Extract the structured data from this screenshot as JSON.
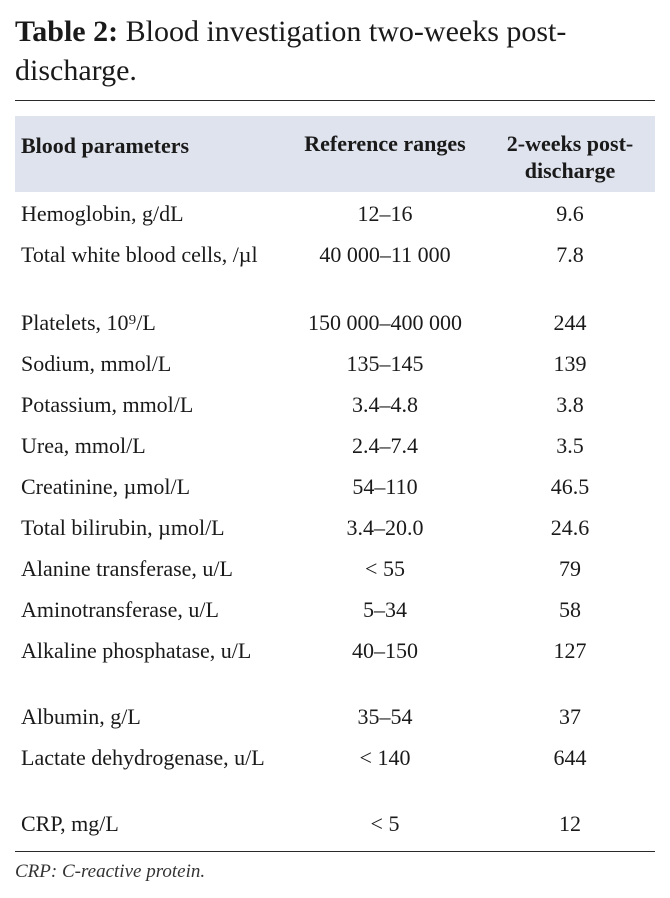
{
  "caption": {
    "label": "Table 2:",
    "text": "Blood investigation two-weeks post-discharge."
  },
  "table": {
    "headers": [
      "Blood parameters",
      "Reference ranges",
      "2-weeks post-discharge"
    ],
    "rows": [
      [
        "Hemoglobin, g/dL",
        "12–16",
        "9.6"
      ],
      [
        "Total white blood cells, /µl",
        "40 000–11 000",
        "7.8"
      ],
      [
        "Platelets, 10⁹/L",
        "150 000–400 000",
        "244"
      ],
      [
        "Sodium, mmol/L",
        "135–145",
        "139"
      ],
      [
        "Potassium, mmol/L",
        "3.4–4.8",
        "3.8"
      ],
      [
        "Urea, mmol/L",
        "2.4–7.4",
        "3.5"
      ],
      [
        "Creatinine, µmol/L",
        "54–110",
        "46.5"
      ],
      [
        "Total bilirubin, µmol/L",
        "3.4–20.0",
        "24.6"
      ],
      [
        "Alanine transferase, u/L",
        "< 55",
        "79"
      ],
      [
        "Aminotransferase, u/L",
        "5–34",
        "58"
      ],
      [
        "Alkaline phosphatase, u/L",
        "40–150",
        "127"
      ],
      [
        "Albumin, g/L",
        "35–54",
        "37"
      ],
      [
        "Lactate dehydrogenase, u/L",
        "< 140",
        "644"
      ],
      [
        "CRP, mg/L",
        "< 5",
        "12"
      ]
    ]
  },
  "footnote": "CRP: C-reactive protein."
}
